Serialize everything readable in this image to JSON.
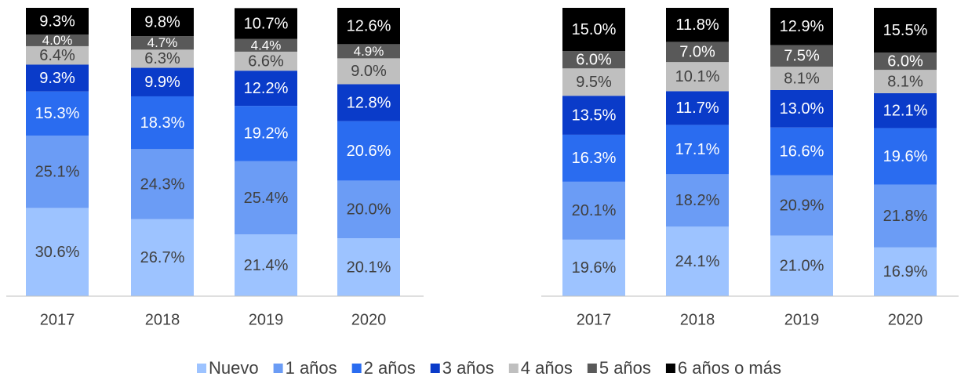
{
  "chart_data": [
    {
      "type": "bar",
      "stacked": true,
      "categories": [
        "2017",
        "2018",
        "2019",
        "2020"
      ],
      "ylim": [
        0,
        100
      ],
      "series": [
        {
          "values": [
            30.6,
            26.7,
            21.4,
            20.1
          ],
          "value_labels": [
            "30.6%",
            "26.7%",
            "21.4%",
            "20.1%"
          ]
        },
        {
          "values": [
            25.1,
            24.3,
            25.4,
            20.0
          ],
          "value_labels": [
            "25.1%",
            "24.3%",
            "25.4%",
            "20.0%"
          ]
        },
        {
          "values": [
            15.3,
            18.3,
            19.2,
            20.6
          ],
          "value_labels": [
            "15.3%",
            "18.3%",
            "19.2%",
            "20.6%"
          ]
        },
        {
          "values": [
            9.3,
            9.9,
            12.2,
            12.8
          ],
          "value_labels": [
            "9.3%",
            "9.9%",
            "12.2%",
            "12.8%"
          ]
        },
        {
          "values": [
            6.4,
            6.3,
            6.6,
            9.0
          ],
          "value_labels": [
            "6.4%",
            "6.3%",
            "6.6%",
            "9.0%"
          ]
        },
        {
          "values": [
            4.0,
            4.7,
            4.4,
            4.9
          ],
          "value_labels": [
            "4.0%",
            "4.7%",
            "4.4%",
            "4.9%"
          ]
        },
        {
          "values": [
            9.3,
            9.8,
            10.7,
            12.6
          ],
          "value_labels": [
            "9.3%",
            "9.8%",
            "10.7%",
            "12.6%"
          ]
        }
      ]
    },
    {
      "type": "bar",
      "stacked": true,
      "categories": [
        "2017",
        "2018",
        "2019",
        "2020"
      ],
      "ylim": [
        0,
        100
      ],
      "series": [
        {
          "values": [
            19.6,
            24.1,
            21.0,
            16.9
          ],
          "value_labels": [
            "19.6%",
            "24.1%",
            "21.0%",
            "16.9%"
          ]
        },
        {
          "values": [
            20.1,
            18.2,
            20.9,
            21.8
          ],
          "value_labels": [
            "20.1%",
            "18.2%",
            "20.9%",
            "21.8%"
          ]
        },
        {
          "values": [
            16.3,
            17.1,
            16.6,
            19.6
          ],
          "value_labels": [
            "16.3%",
            "17.1%",
            "16.6%",
            "19.6%"
          ]
        },
        {
          "values": [
            13.5,
            11.7,
            13.0,
            12.1
          ],
          "value_labels": [
            "13.5%",
            "11.7%",
            "13.0%",
            "12.1%"
          ]
        },
        {
          "values": [
            9.5,
            10.1,
            8.1,
            8.1
          ],
          "value_labels": [
            "9.5%",
            "10.1%",
            "8.1%",
            "8.1%"
          ]
        },
        {
          "values": [
            6.0,
            7.0,
            7.5,
            6.0
          ],
          "value_labels": [
            "6.0%",
            "7.0%",
            "7.5%",
            "6.0%"
          ]
        },
        {
          "values": [
            15.0,
            11.8,
            12.9,
            15.5
          ],
          "value_labels": [
            "15.0%",
            "11.8%",
            "12.9%",
            "15.5%"
          ]
        }
      ]
    }
  ],
  "legend": [
    {
      "name": "Nuevo",
      "color": "#9dc3ff"
    },
    {
      "name": "1 años",
      "color": "#6b9cf5"
    },
    {
      "name": "2 años",
      "color": "#2a6cf0"
    },
    {
      "name": "3 años",
      "color": "#0a3bc9"
    },
    {
      "name": "4 años",
      "color": "#bfbfbf"
    },
    {
      "name": "5 años",
      "color": "#595959"
    },
    {
      "name": "6 años o más",
      "color": "#000000"
    }
  ]
}
